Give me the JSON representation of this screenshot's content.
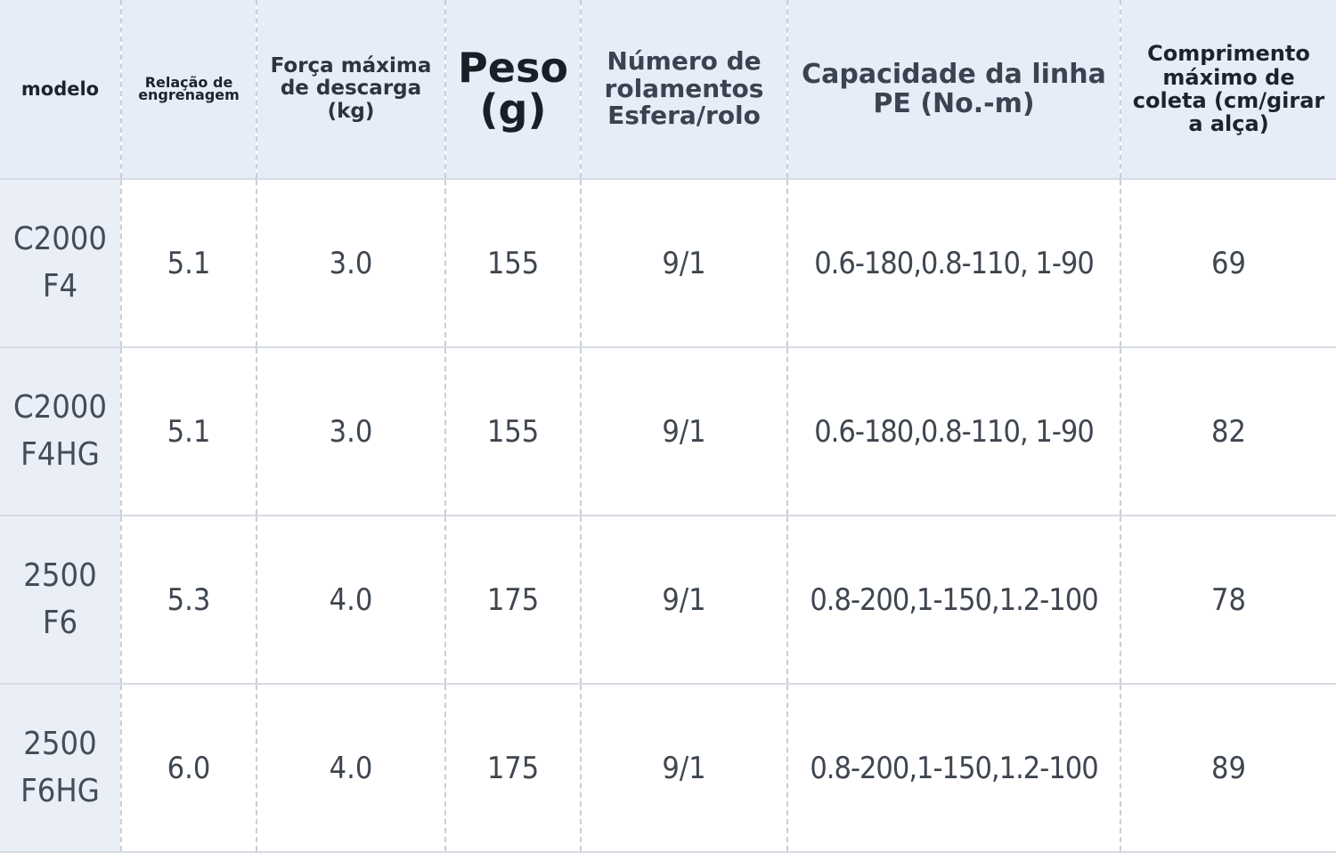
{
  "headers": {
    "modelo": "modelo",
    "relacao": "Relação de engrenagem",
    "forca": "Força máxima de descarga (kg)",
    "peso": "Peso (g)",
    "numero": "Número de rolamentos Esfera/rolo",
    "capacidade": "Capacidade da linha PE (No.-m)",
    "comprimento": "Comprimento máximo de coleta (cm/girar a alça)"
  },
  "rows": [
    {
      "modelo_l1": "C2000",
      "modelo_l2": "F4",
      "relacao": "5.1",
      "forca": "3.0",
      "peso": "155",
      "rolamentos": "9/1",
      "capacidade": "0.6-180,0.8-110, 1-90",
      "comprimento": "69"
    },
    {
      "modelo_l1": "C2000",
      "modelo_l2": "F4HG",
      "relacao": "5.1",
      "forca": "3.0",
      "peso": "155",
      "rolamentos": "9/1",
      "capacidade": "0.6-180,0.8-110, 1-90",
      "comprimento": "82"
    },
    {
      "modelo_l1": "2500",
      "modelo_l2": "F6",
      "relacao": "5.3",
      "forca": "4.0",
      "peso": "175",
      "rolamentos": "9/1",
      "capacidade": "0.8-200,1-150,1.2-100",
      "comprimento": "78"
    },
    {
      "modelo_l1": "2500",
      "modelo_l2": "F6HG",
      "relacao": "6.0",
      "forca": "4.0",
      "peso": "175",
      "rolamentos": "9/1",
      "capacidade": "0.8-200,1-150,1.2-100",
      "comprimento": "89"
    }
  ]
}
